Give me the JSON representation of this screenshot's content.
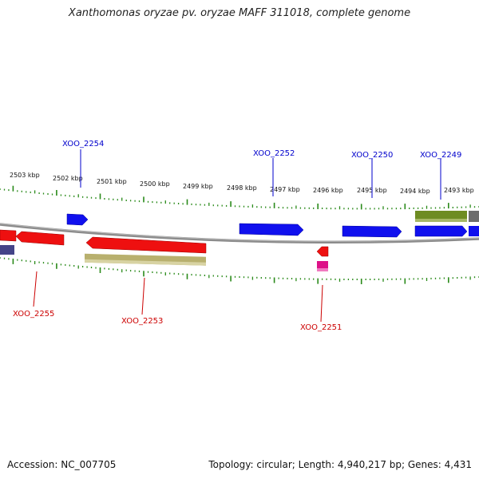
{
  "title": "Xanthomonas oryzae pv. oryzae MAFF 311018, complete genome",
  "footer": {
    "accession": "Accession: NC_007705",
    "summary": "Topology: circular; Length: 4,940,217 bp; Genes: 4,431"
  },
  "colors": {
    "tick": "#2a8a1a",
    "backbone": "#8c8c8c",
    "label_forward": "#0000cc",
    "label_reverse": "#cc0000"
  },
  "scale_labels": [
    "2503 kbp",
    "2502 kbp",
    "2501 kbp",
    "2500 kbp",
    "2499 kbp",
    "2498 kbp",
    "2497 kbp",
    "2496 kbp",
    "2495 kbp",
    "2494 kbp",
    "2493 kbp"
  ],
  "gene_labels": {
    "forward": [
      "XOO_2254",
      "XOO_2252",
      "XOO_2250",
      "XOO_2249"
    ],
    "reverse": [
      "XOO_2255",
      "XOO_2253",
      "XOO_2251"
    ]
  }
}
